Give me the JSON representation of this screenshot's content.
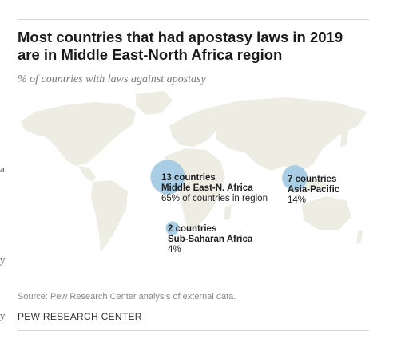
{
  "page": {
    "edge_glyphs": [
      "a",
      "y",
      "y"
    ],
    "footer": {
      "source": "Source: Pew Research Center analysis of external data.",
      "org": "PEW RESEARCH CENTER"
    }
  },
  "colors": {
    "bubble": "#a9cde4",
    "land": "#eeede3"
  },
  "chart_data": {
    "type": "bubble-map",
    "title": "Most countries that had apostasy laws in 2019 are in Middle East-North Africa region",
    "subtitle": "% of countries with laws against apostasy",
    "regions": [
      {
        "label_count": "13 countries",
        "region": "Middle East-N. Africa",
        "note": "65% of countries in region",
        "countries": 13
      },
      {
        "label_count": "7 countries",
        "region": "Asia-Pacific",
        "note": "14%",
        "countries": 7
      },
      {
        "label_count": "2 countries",
        "region": "Sub-Saharan Africa",
        "note": "4%",
        "countries": 2
      }
    ]
  }
}
